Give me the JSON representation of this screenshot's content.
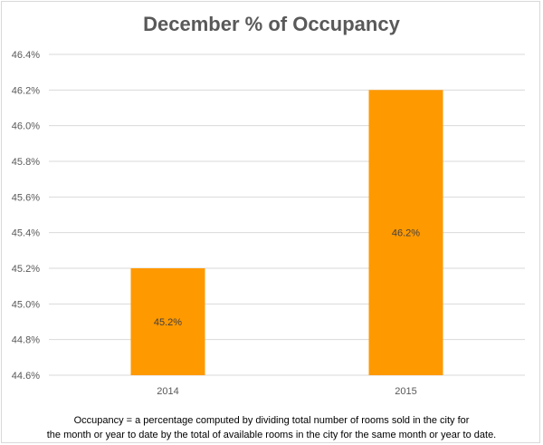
{
  "chart_data": {
    "type": "bar",
    "title": "December % of Occupancy",
    "xlabel": "",
    "ylabel": "",
    "categories": [
      "2014",
      "2015"
    ],
    "values": [
      45.2,
      46.2
    ],
    "data_labels": [
      "45.2%",
      "46.2%"
    ],
    "ylim": [
      44.6,
      46.4
    ],
    "yticks": [
      "44.6%",
      "44.8%",
      "45.0%",
      "45.2%",
      "45.4%",
      "45.6%",
      "45.8%",
      "46.0%",
      "46.2%",
      "46.4%"
    ],
    "grid": true,
    "legend": "none",
    "bar_color": "#FF9900",
    "grid_color": "#D9D9D9",
    "label_color": "#595959"
  },
  "footnote": {
    "line1": "Occupancy = a percentage computed by dividing total number of rooms sold in the city for",
    "line2": "the month or year to date by the total of available rooms in the city for the same month or year to date."
  }
}
